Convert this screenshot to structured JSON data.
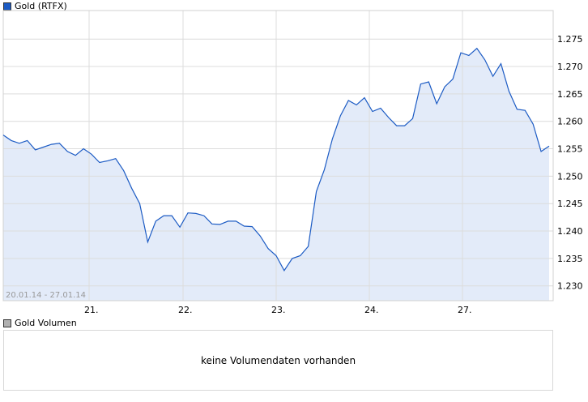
{
  "legend": {
    "main": "Gold (RTFX)",
    "main_color": "#1c5bc4",
    "volume": "Gold Volumen",
    "volume_color": "#b0b0b0"
  },
  "volume": {
    "message": "keine Volumendaten vorhanden"
  },
  "chart_data": {
    "type": "area",
    "date_range": "20.01.14 - 27.01.14",
    "x_ticks": [
      "21.",
      "22.",
      "23.",
      "24.",
      "27."
    ],
    "y_ticks": [
      "1.275",
      "1.270",
      "1.265",
      "1.260",
      "1.255",
      "1.250",
      "1.245",
      "1.240",
      "1.235",
      "1.230"
    ],
    "ylim": [
      1.2273,
      1.2802
    ],
    "grid": true,
    "line_color": "#1c5bc4",
    "fill_color": "#e3ebf9",
    "series": [
      {
        "name": "Gold (RTFX)",
        "values": [
          1.2575,
          1.2565,
          1.256,
          1.2565,
          1.2548,
          1.2553,
          1.2558,
          1.256,
          1.2545,
          1.2538,
          1.255,
          1.254,
          1.2525,
          1.2528,
          1.2532,
          1.251,
          1.2478,
          1.245,
          1.238,
          1.2418,
          1.2428,
          1.2428,
          1.2407,
          1.2433,
          1.2432,
          1.2428,
          1.2413,
          1.2412,
          1.2418,
          1.2418,
          1.2409,
          1.2408,
          1.2391,
          1.2368,
          1.2355,
          1.2328,
          1.235,
          1.2355,
          1.2372,
          1.2472,
          1.2512,
          1.2568,
          1.261,
          1.2638,
          1.263,
          1.2643,
          1.2618,
          1.2624,
          1.2607,
          1.2592,
          1.2592,
          1.2605,
          1.2668,
          1.2672,
          1.2632,
          1.2663,
          1.2677,
          1.2725,
          1.272,
          1.2733,
          1.2712,
          1.2682,
          1.2705,
          1.2655,
          1.2622,
          1.262,
          1.2595,
          1.2545,
          1.2555
        ]
      }
    ]
  }
}
